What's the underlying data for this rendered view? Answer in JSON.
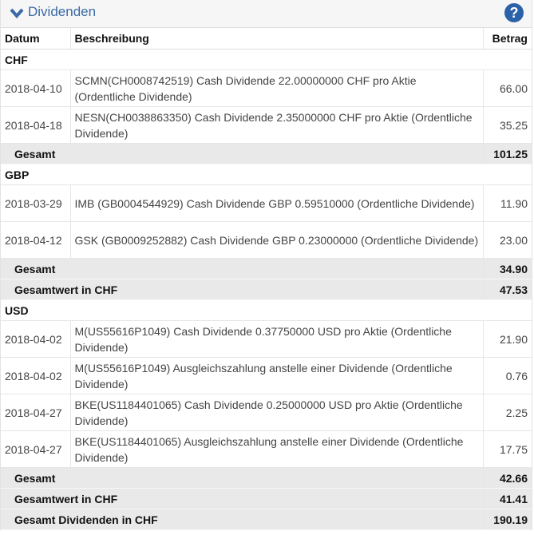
{
  "header": {
    "title": "Dividenden",
    "help_icon": "?"
  },
  "columns": {
    "date": "Datum",
    "description": "Beschreibung",
    "amount": "Betrag"
  },
  "groups": [
    {
      "currency": "CHF",
      "rows": [
        {
          "date": "2018-04-10",
          "desc": "SCMN(CH0008742519) Cash Dividende 22.00000000 CHF pro Aktie (Ordentliche Dividende)",
          "amount": "66.00"
        },
        {
          "date": "2018-04-18",
          "desc": "NESN(CH0038863350) Cash Dividende 2.35000000 CHF pro Aktie (Ordentliche Dividende)",
          "amount": "35.25"
        }
      ],
      "totals": [
        {
          "label": "Gesamt",
          "value": "101.25"
        }
      ]
    },
    {
      "currency": "GBP",
      "rows": [
        {
          "date": "2018-03-29",
          "desc": "IMB (GB0004544929) Cash Dividende GBP 0.59510000 (Ordentliche Dividende)",
          "amount": "11.90"
        },
        {
          "date": "2018-04-12",
          "desc": "GSK (GB0009252882) Cash Dividende GBP 0.23000000 (Ordentliche Dividende)",
          "amount": "23.00"
        }
      ],
      "totals": [
        {
          "label": "Gesamt",
          "value": "34.90"
        },
        {
          "label": "Gesamtwert in CHF",
          "value": "47.53"
        }
      ]
    },
    {
      "currency": "USD",
      "rows": [
        {
          "date": "2018-04-02",
          "desc": "M(US55616P1049) Cash Dividende 0.37750000 USD pro Aktie (Ordentliche Dividende)",
          "amount": "21.90"
        },
        {
          "date": "2018-04-02",
          "desc": "M(US55616P1049) Ausgleichszahlung anstelle einer Dividende (Ordentliche Dividende)",
          "amount": "0.76"
        },
        {
          "date": "2018-04-27",
          "desc": "BKE(US1184401065) Cash Dividende 0.25000000 USD pro Aktie (Ordentliche Dividende)",
          "amount": "2.25"
        },
        {
          "date": "2018-04-27",
          "desc": "BKE(US1184401065) Ausgleichszahlung anstelle einer Dividende (Ordentliche Dividende)",
          "amount": "17.75"
        }
      ],
      "totals": [
        {
          "label": "Gesamt",
          "value": "42.66"
        },
        {
          "label": "Gesamtwert in CHF",
          "value": "41.41"
        }
      ]
    }
  ],
  "grand_total": {
    "label": "Gesamt Dividenden in CHF",
    "value": "190.19"
  }
}
